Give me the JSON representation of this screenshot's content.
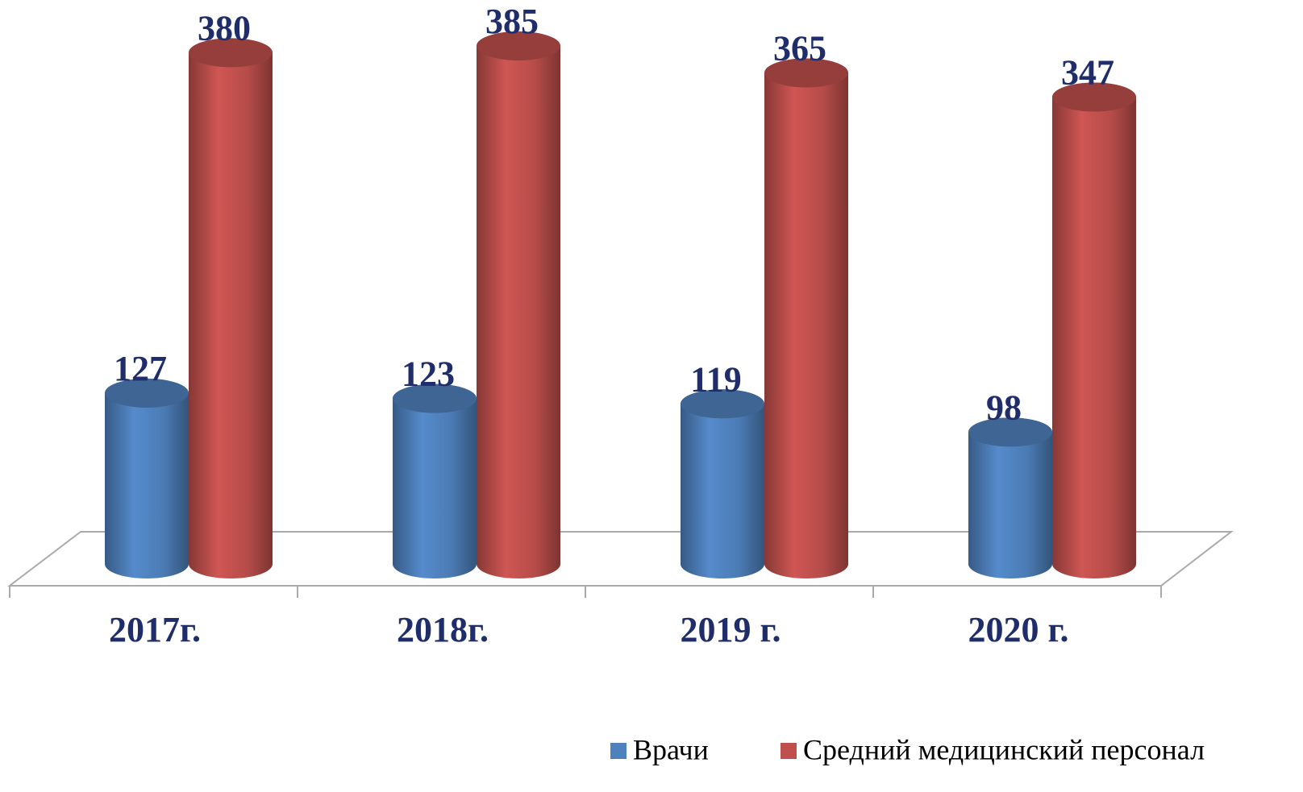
{
  "chart_data": {
    "type": "bar",
    "categories": [
      "2017г.",
      "2018г.",
      "2019 г.",
      "2020 г."
    ],
    "series": [
      {
        "name": "Врачи",
        "color": "#4f81bd",
        "values": [
          127,
          123,
          119,
          98
        ]
      },
      {
        "name": "Средний медицинский персонал",
        "color": "#c0504d",
        "values": [
          380,
          385,
          365,
          347
        ]
      }
    ],
    "legend": "bottom-right"
  }
}
